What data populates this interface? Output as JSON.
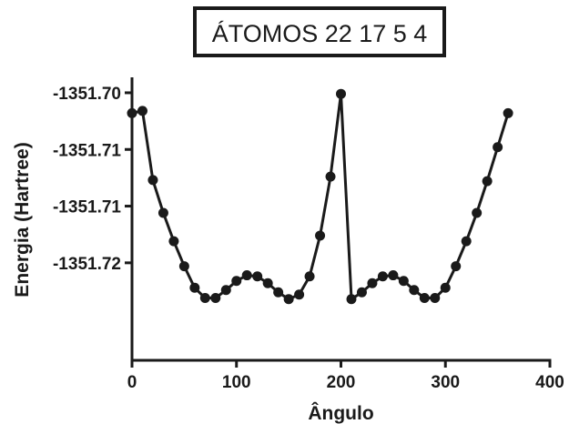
{
  "chart_data": {
    "type": "line",
    "title": "ÁTOMOS 22 17 5 4",
    "xlabel": "Ângulo",
    "ylabel": "Energia (Hartree)",
    "xlim": [
      0,
      400
    ],
    "ylim": [
      -1351.7236,
      -1351.6988
    ],
    "x_ticks": [
      0,
      100,
      200,
      300,
      400
    ],
    "x_tick_labels": [
      "0",
      "100",
      "200",
      "300",
      "400"
    ],
    "y_ticks": [
      -1351.7,
      -1351.705,
      -1351.71,
      -1351.715
    ],
    "y_tick_labels": [
      "-1351.70",
      "-1351.71",
      "-1351.71",
      "-1351.72"
    ],
    "grid": false,
    "legend": "none",
    "series": [
      {
        "color": "#1a1a1a",
        "marker": "circle",
        "x": [
          0,
          10,
          20,
          30,
          40,
          50,
          60,
          70,
          80,
          90,
          100,
          110,
          120,
          130,
          140,
          150,
          160,
          170,
          180,
          190,
          200,
          210,
          220,
          230,
          240,
          250,
          260,
          270,
          280,
          290,
          300,
          310,
          320,
          330,
          340,
          350,
          360
        ],
        "y": [
          -1351.7018,
          -1351.7016,
          -1351.7077,
          -1351.7106,
          -1351.7131,
          -1351.7153,
          -1351.7172,
          -1351.7181,
          -1351.7181,
          -1351.7174,
          -1351.7166,
          -1351.7161,
          -1351.7162,
          -1351.7168,
          -1351.7176,
          -1351.7182,
          -1351.7178,
          -1351.7162,
          -1351.7126,
          -1351.7074,
          -1351.7001,
          -1351.7182,
          -1351.7176,
          -1351.7168,
          -1351.7162,
          -1351.7161,
          -1351.7166,
          -1351.7174,
          -1351.7181,
          -1351.7181,
          -1351.7172,
          -1351.7153,
          -1351.7131,
          -1351.7106,
          -1351.7078,
          -1351.7048,
          -1351.7018
        ]
      }
    ]
  }
}
